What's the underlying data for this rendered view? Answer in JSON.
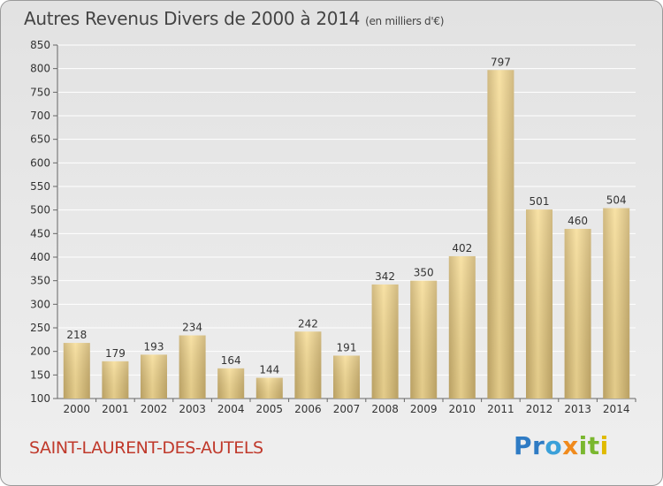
{
  "header": {
    "title": "Autres Revenus Divers de 2000 à 2014",
    "unit": "(en milliers d'€)"
  },
  "footer": {
    "commune": "SAINT-LAURENT-DES-AUTELS",
    "logo": [
      "P",
      "r",
      "o",
      "x",
      "i",
      "t",
      "i"
    ]
  },
  "colors": {
    "bar_light": "#f7dd96",
    "bar_dark": "#c9ae6c",
    "grid": "#ffffff",
    "axis": "#666666",
    "commune": "#c0392b"
  },
  "chart_data": {
    "type": "bar",
    "title": "Autres Revenus Divers de 2000 à 2014",
    "xlabel": "",
    "ylabel": "",
    "categories": [
      "2000",
      "2001",
      "2002",
      "2003",
      "2004",
      "2005",
      "2006",
      "2007",
      "2008",
      "2009",
      "2010",
      "2011",
      "2012",
      "2013",
      "2014"
    ],
    "values": [
      218,
      179,
      193,
      234,
      164,
      144,
      242,
      191,
      342,
      350,
      402,
      797,
      501,
      460,
      504
    ],
    "ylim": [
      100,
      850
    ],
    "yticks": [
      100,
      150,
      200,
      250,
      300,
      350,
      400,
      450,
      500,
      550,
      600,
      650,
      700,
      750,
      800,
      850
    ],
    "grid": true
  }
}
